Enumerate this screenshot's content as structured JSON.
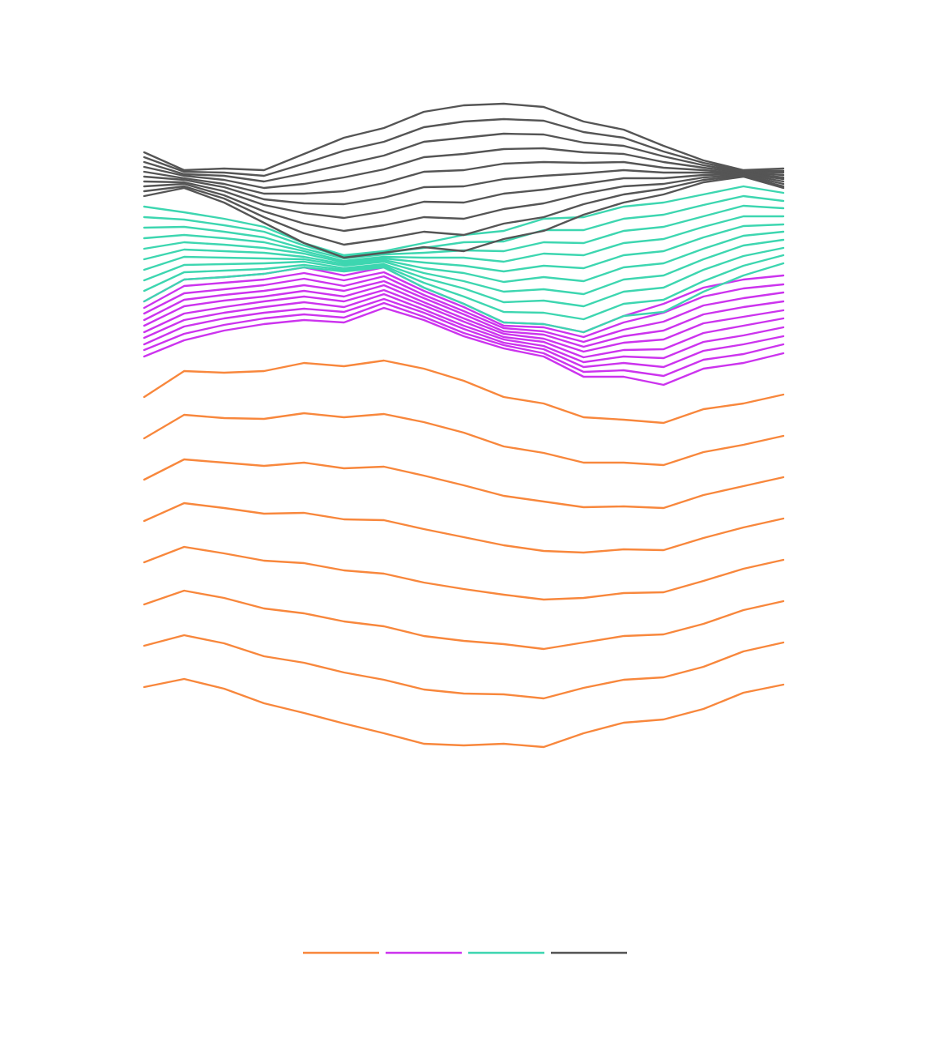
{
  "chart_data": {
    "type": "line",
    "legend": "bottom",
    "x": [
      0,
      1,
      2,
      3,
      4,
      5,
      6,
      7,
      8,
      9,
      10,
      11,
      12,
      13,
      14,
      15,
      16
    ],
    "xlim": [
      0,
      16
    ],
    "ylim": [
      0,
      85
    ],
    "series": [
      {
        "color": "#f8873c",
        "values": [
          46.0,
          49.2,
          49.0,
          49.2,
          50.2,
          49.8,
          50.5,
          49.5,
          48.0,
          46.0,
          45.2,
          43.5,
          43.2,
          42.8,
          44.5,
          45.2,
          46.3
        ]
      },
      {
        "color": "#f8873c",
        "values": [
          40.9,
          43.8,
          43.4,
          43.3,
          44.0,
          43.5,
          43.9,
          42.9,
          41.6,
          39.9,
          39.1,
          37.9,
          37.9,
          37.6,
          39.2,
          40.1,
          41.2
        ]
      },
      {
        "color": "#f8873c",
        "values": [
          35.8,
          38.3,
          37.9,
          37.5,
          37.9,
          37.2,
          37.4,
          36.3,
          35.1,
          33.8,
          33.1,
          32.4,
          32.5,
          32.3,
          33.9,
          35.0,
          36.1
        ]
      },
      {
        "color": "#f8873c",
        "values": [
          30.7,
          32.9,
          32.3,
          31.6,
          31.7,
          30.9,
          30.8,
          29.7,
          28.7,
          27.7,
          27.0,
          26.8,
          27.2,
          27.1,
          28.6,
          29.9,
          31.0
        ]
      },
      {
        "color": "#f8873c",
        "values": [
          25.6,
          27.5,
          26.7,
          25.8,
          25.5,
          24.6,
          24.2,
          23.1,
          22.3,
          21.6,
          21.0,
          21.2,
          21.8,
          21.9,
          23.3,
          24.8,
          25.9
        ]
      },
      {
        "color": "#f8873c",
        "values": [
          20.4,
          22.1,
          21.2,
          19.9,
          19.3,
          18.3,
          17.7,
          16.5,
          15.9,
          15.5,
          14.9,
          15.7,
          16.5,
          16.7,
          18.0,
          19.7,
          20.8
        ]
      },
      {
        "color": "#f8873c",
        "values": [
          15.3,
          16.6,
          15.6,
          14.0,
          13.2,
          12.0,
          11.1,
          9.9,
          9.4,
          9.3,
          8.8,
          10.1,
          11.1,
          11.4,
          12.7,
          14.6,
          15.7
        ]
      },
      {
        "color": "#f8873c",
        "values": [
          10.2,
          11.2,
          10.0,
          8.2,
          7.0,
          5.7,
          4.5,
          3.2,
          3.0,
          3.2,
          2.8,
          4.5,
          5.8,
          6.2,
          7.5,
          9.5,
          10.5
        ]
      },
      {
        "color": "#cc33ee",
        "values": [
          57.8,
          60.5,
          60.8,
          61.2,
          62.0,
          61.0,
          62.0,
          59.5,
          57.5,
          55.2,
          55.0,
          54.0,
          56.0,
          57.5,
          59.5,
          60.5,
          61.0
        ]
      },
      {
        "color": "#cc33ee",
        "values": [
          57.0,
          59.7,
          60.1,
          60.5,
          61.3,
          60.4,
          61.4,
          59.1,
          57.1,
          54.8,
          54.6,
          53.4,
          55.2,
          56.4,
          58.4,
          59.4,
          59.9
        ]
      },
      {
        "color": "#cc33ee",
        "values": [
          56.3,
          58.8,
          59.3,
          59.8,
          60.6,
          59.7,
          60.9,
          58.6,
          56.6,
          54.5,
          54.1,
          52.8,
          54.3,
          55.3,
          57.3,
          58.2,
          58.9
        ]
      },
      {
        "color": "#cc33ee",
        "values": [
          55.5,
          58.0,
          58.6,
          59.1,
          59.8,
          59.1,
          60.3,
          58.2,
          56.2,
          54.1,
          53.7,
          52.2,
          53.5,
          54.2,
          56.2,
          57.1,
          57.8
        ]
      },
      {
        "color": "#cc33ee",
        "values": [
          54.8,
          57.2,
          57.9,
          58.4,
          59.1,
          58.4,
          59.8,
          57.7,
          55.7,
          53.8,
          53.2,
          51.6,
          52.7,
          53.1,
          55.1,
          55.9,
          56.7
        ]
      },
      {
        "color": "#cc33ee",
        "values": [
          54.0,
          56.3,
          57.1,
          57.8,
          58.4,
          57.8,
          59.2,
          57.3,
          55.3,
          53.4,
          52.8,
          50.9,
          51.8,
          51.9,
          53.9,
          54.8,
          55.7
        ]
      },
      {
        "color": "#cc33ee",
        "values": [
          53.3,
          55.5,
          56.4,
          57.1,
          57.7,
          57.1,
          58.7,
          56.8,
          54.8,
          53.1,
          52.3,
          50.3,
          51.0,
          50.8,
          52.8,
          53.6,
          54.6
        ]
      },
      {
        "color": "#cc33ee",
        "values": [
          52.5,
          54.7,
          55.7,
          56.4,
          56.9,
          56.5,
          58.1,
          56.4,
          54.4,
          52.7,
          51.9,
          49.7,
          50.2,
          49.7,
          51.7,
          52.5,
          53.5
        ]
      },
      {
        "color": "#cc33ee",
        "values": [
          51.8,
          53.8,
          54.9,
          55.7,
          56.2,
          55.8,
          57.6,
          55.9,
          53.9,
          52.4,
          51.4,
          49.1,
          49.3,
          48.6,
          50.6,
          51.3,
          52.5
        ]
      },
      {
        "color": "#cc33ee",
        "values": [
          51.0,
          53.0,
          54.2,
          55.0,
          55.5,
          55.2,
          57.0,
          55.5,
          53.5,
          52.0,
          51.0,
          48.5,
          48.5,
          47.5,
          49.5,
          50.2,
          51.4
        ]
      },
      {
        "color": "#3dd6b0",
        "values": [
          69.5,
          68.8,
          68.0,
          67.0,
          65.0,
          63.5,
          64.0,
          65.0,
          66.0,
          66.5,
          68.0,
          68.2,
          69.5,
          70.0,
          71.0,
          72.0,
          71.2
        ]
      },
      {
        "color": "#3dd6b0",
        "values": [
          68.2,
          67.9,
          67.2,
          66.4,
          64.7,
          63.3,
          63.8,
          64.4,
          65.1,
          65.2,
          66.6,
          66.6,
          68.0,
          68.5,
          69.7,
          70.8,
          70.2
        ]
      },
      {
        "color": "#3dd6b0",
        "values": [
          66.9,
          67.0,
          66.4,
          65.7,
          64.3,
          63.1,
          63.6,
          63.8,
          64.1,
          64.0,
          65.1,
          65.0,
          66.5,
          67.0,
          68.3,
          69.6,
          69.3
        ]
      },
      {
        "color": "#3dd6b0",
        "values": [
          65.6,
          66.0,
          65.6,
          65.1,
          64.0,
          62.8,
          63.3,
          63.2,
          63.2,
          62.7,
          63.7,
          63.5,
          65.0,
          65.5,
          67.0,
          68.3,
          68.3
        ]
      },
      {
        "color": "#3dd6b0",
        "values": [
          64.3,
          65.1,
          64.8,
          64.4,
          63.7,
          62.6,
          63.1,
          62.6,
          62.2,
          61.5,
          62.2,
          61.9,
          63.5,
          64.0,
          65.7,
          67.1,
          67.3
        ]
      },
      {
        "color": "#3dd6b0",
        "values": [
          63.0,
          64.2,
          64.0,
          63.8,
          63.3,
          62.4,
          62.9,
          61.9,
          61.3,
          60.2,
          60.8,
          60.3,
          62.0,
          62.5,
          64.3,
          65.9,
          66.4
        ]
      },
      {
        "color": "#3dd6b0",
        "values": [
          61.7,
          63.3,
          63.2,
          63.1,
          63.0,
          62.2,
          62.7,
          61.3,
          60.3,
          59.0,
          59.3,
          58.7,
          60.5,
          61.0,
          63.0,
          64.7,
          65.4
        ]
      },
      {
        "color": "#3dd6b0",
        "values": [
          60.4,
          62.3,
          62.4,
          62.5,
          62.7,
          61.9,
          62.4,
          60.7,
          59.4,
          57.7,
          57.9,
          57.2,
          59.0,
          59.5,
          61.7,
          63.4,
          64.4
        ]
      },
      {
        "color": "#3dd6b0",
        "values": [
          59.1,
          61.4,
          61.6,
          61.8,
          62.3,
          61.7,
          62.2,
          60.1,
          58.4,
          56.5,
          56.4,
          55.6,
          57.5,
          58.0,
          60.3,
          62.2,
          63.5
        ]
      },
      {
        "color": "#3dd6b0",
        "values": [
          57.8,
          60.5,
          60.8,
          61.2,
          62.0,
          61.5,
          62.0,
          59.5,
          57.5,
          55.2,
          55.0,
          54.0,
          56.0,
          56.5,
          59.0,
          61.0,
          62.5
        ]
      },
      {
        "color": "#555555",
        "values": [
          76.2,
          74.0,
          74.2,
          74.0,
          76.0,
          78.0,
          79.2,
          81.2,
          82.0,
          82.2,
          81.8,
          80.0,
          79.0,
          77.0,
          75.2,
          74.0,
          74.2
        ]
      },
      {
        "color": "#555555",
        "values": [
          75.6,
          73.8,
          73.7,
          73.3,
          74.8,
          76.4,
          77.5,
          79.3,
          80.0,
          80.3,
          80.1,
          78.7,
          78.0,
          76.3,
          74.9,
          73.9,
          73.9
        ]
      },
      {
        "color": "#555555",
        "values": [
          75.0,
          73.5,
          73.3,
          72.6,
          73.6,
          74.7,
          75.8,
          77.5,
          78.0,
          78.5,
          78.4,
          77.4,
          77.0,
          75.7,
          74.6,
          73.8,
          73.7
        ]
      },
      {
        "color": "#555555",
        "values": [
          74.4,
          73.3,
          72.8,
          71.8,
          72.3,
          73.1,
          74.1,
          75.6,
          76.0,
          76.6,
          76.7,
          76.2,
          76.0,
          75.0,
          74.3,
          73.7,
          73.4
        ]
      },
      {
        "color": "#555555",
        "values": [
          73.8,
          73.0,
          72.3,
          71.1,
          71.1,
          71.4,
          72.4,
          73.8,
          74.0,
          74.8,
          75.0,
          74.9,
          75.0,
          74.3,
          74.0,
          73.6,
          73.1
        ]
      },
      {
        "color": "#555555",
        "values": [
          73.2,
          72.8,
          71.9,
          70.4,
          69.9,
          69.8,
          70.6,
          71.9,
          72.0,
          72.9,
          73.3,
          73.6,
          74.0,
          73.7,
          73.7,
          73.6,
          72.9
        ]
      },
      {
        "color": "#555555",
        "values": [
          72.6,
          72.5,
          71.4,
          69.7,
          68.7,
          68.1,
          68.9,
          70.1,
          70.0,
          71.1,
          71.6,
          72.3,
          73.0,
          73.0,
          73.4,
          73.5,
          72.6
        ]
      },
      {
        "color": "#555555",
        "values": [
          72.0,
          72.3,
          70.9,
          68.9,
          67.4,
          66.5,
          67.2,
          68.2,
          68.0,
          69.2,
          69.9,
          71.1,
          72.0,
          72.3,
          73.1,
          73.4,
          72.3
        ]
      },
      {
        "color": "#555555",
        "values": [
          71.4,
          72.0,
          70.5,
          68.2,
          66.2,
          64.8,
          65.5,
          66.4,
          66.0,
          67.4,
          68.2,
          69.8,
          71.0,
          71.7,
          72.8,
          73.3,
          72.0
        ]
      },
      {
        "color": "#555555",
        "values": [
          70.8,
          71.8,
          70.0,
          67.5,
          65.0,
          63.2,
          63.8,
          64.5,
          64.0,
          65.5,
          66.5,
          68.5,
          70.0,
          71.0,
          72.5,
          73.2,
          71.8
        ]
      }
    ]
  }
}
